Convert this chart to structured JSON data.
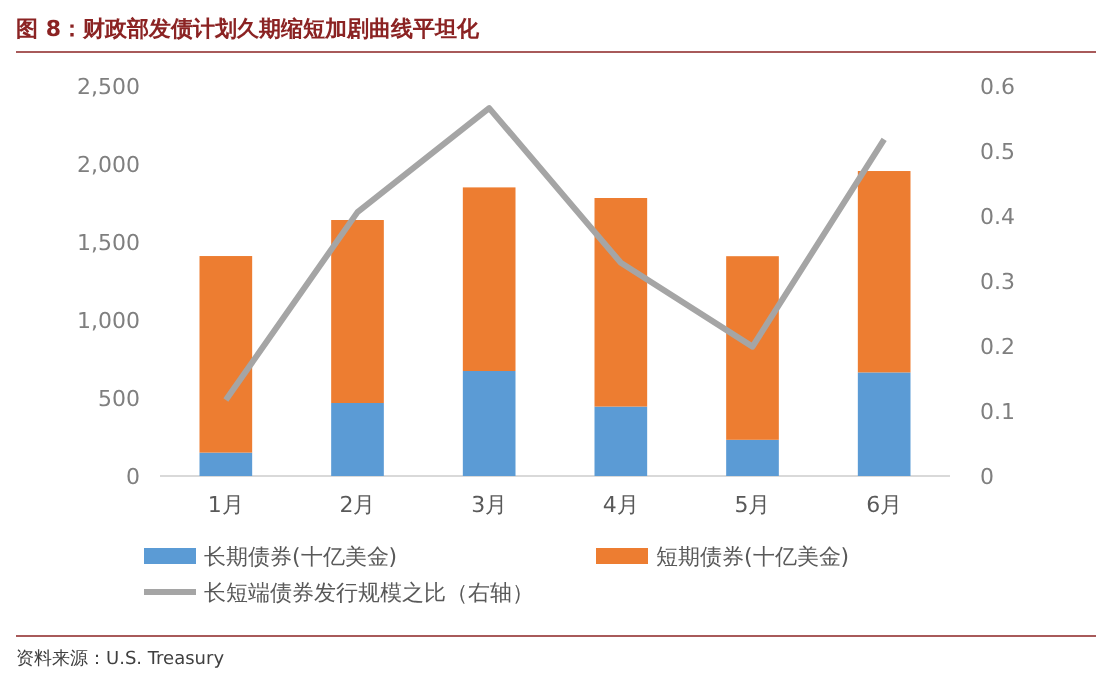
{
  "chart_data": {
    "type": "bar",
    "title": "图 8：财政部发债计划久期缩短加剧曲线平坦化",
    "categories": [
      "1月",
      "2月",
      "3月",
      "4月",
      "5月",
      "6月"
    ],
    "stacked": true,
    "series": [
      {
        "name": "长期债券(十亿美金)",
        "color": "#5b9bd5",
        "values": [
          150,
          468,
          673,
          445,
          232,
          664
        ]
      },
      {
        "name": "短期债券(十亿美金)",
        "color": "#ed7d31",
        "values": [
          1260,
          1173,
          1177,
          1337,
          1177,
          1291
        ]
      },
      {
        "name": "长短端债券发行规模之比（右轴）",
        "type": "line",
        "axis": "y2",
        "color": "#a5a5a5",
        "values": [
          0.117,
          0.406,
          0.566,
          0.328,
          0.199,
          0.518
        ]
      }
    ],
    "ylim": [
      0,
      2500
    ],
    "yticks": [
      {
        "value": 0,
        "label": "0"
      },
      {
        "value": 500,
        "label": "500"
      },
      {
        "value": 1000,
        "label": "1,000"
      },
      {
        "value": 1500,
        "label": "1,500"
      },
      {
        "value": 2000,
        "label": "2,000"
      },
      {
        "value": 2500,
        "label": "2,500"
      }
    ],
    "y2lim": [
      0,
      0.6
    ],
    "y2ticks": [
      {
        "value": 0,
        "label": "0"
      },
      {
        "value": 0.1,
        "label": "0.1"
      },
      {
        "value": 0.2,
        "label": "0.2"
      },
      {
        "value": 0.3,
        "label": "0.3"
      },
      {
        "value": 0.4,
        "label": "0.4"
      },
      {
        "value": 0.5,
        "label": "0.5"
      },
      {
        "value": 0.6,
        "label": "0.6"
      }
    ],
    "legend": "bottom",
    "annotations": [
      "资料来源：U.S. Treasury"
    ]
  }
}
